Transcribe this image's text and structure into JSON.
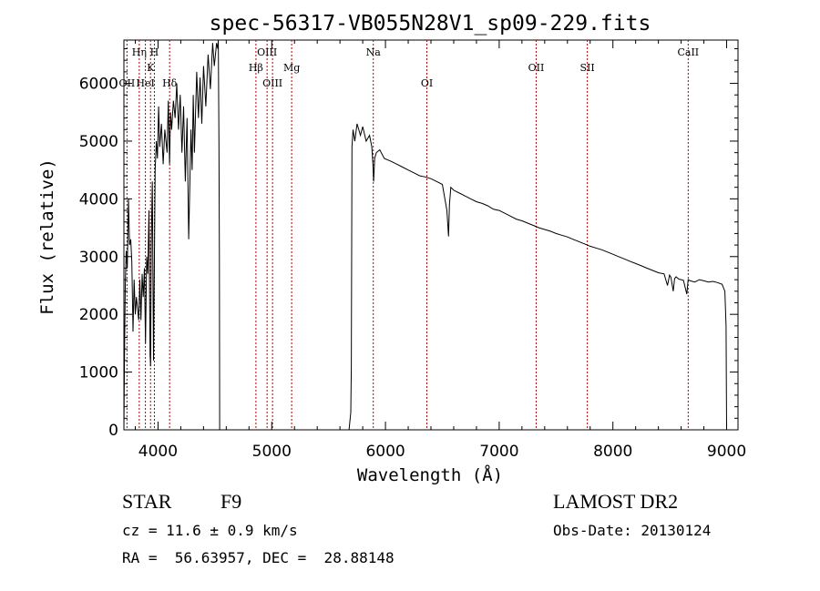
{
  "chart_data": {
    "type": "line",
    "title": "spec-56317-VB055N28V1_sp09-229.fits",
    "xlabel": "Wavelength (Å)",
    "ylabel": "Flux (relative)",
    "xlim": [
      3700,
      9100
    ],
    "ylim": [
      0,
      6750
    ],
    "xticks": [
      4000,
      5000,
      6000,
      7000,
      8000,
      9000
    ],
    "yticks": [
      0,
      1000,
      2000,
      3000,
      4000,
      5000,
      6000
    ],
    "x_tick_labels": [
      "4000",
      "5000",
      "6000",
      "7000",
      "8000",
      "9000"
    ],
    "y_tick_labels": [
      "0",
      "1000",
      "2000",
      "3000",
      "4000",
      "5000",
      "6000"
    ],
    "grid": false,
    "line_color": "#000000",
    "marker_line_color": "#b00000",
    "series": [
      {
        "x": [
          3700,
          3705,
          3712,
          3720,
          3730,
          3740,
          3750,
          3760,
          3770,
          3780,
          3790,
          3800,
          3810,
          3820,
          3830,
          3840,
          3850,
          3860,
          3870,
          3880,
          3890,
          3900,
          3910,
          3920,
          3930,
          3935,
          3940,
          3950,
          3960,
          3968,
          3975,
          3985,
          3995,
          4005,
          4015,
          4030,
          4045,
          4060,
          4080,
          4090,
          4101,
          4110,
          4120,
          4135,
          4150,
          4165,
          4180,
          4195,
          4210,
          4225,
          4240,
          4255,
          4270,
          4290,
          4300,
          4310,
          4320,
          4340,
          4355,
          4370,
          4385,
          4400,
          4420,
          4440,
          4460,
          4480,
          4495,
          4505,
          4515,
          4525,
          4530,
          4536,
          4540,
          4542,
          4550,
          4600,
          4700,
          4800,
          4900,
          5000,
          5100,
          5200,
          5300,
          5400,
          5500,
          5600,
          5680,
          5695,
          5700,
          5705,
          5715,
          5730,
          5750,
          5780,
          5800,
          5830,
          5860,
          5880,
          5890,
          5896,
          5905,
          5920,
          5950,
          5990,
          6050,
          6100,
          6150,
          6200,
          6250,
          6300,
          6350,
          6400,
          6450,
          6500,
          6540,
          6555,
          6563,
          6575,
          6600,
          6650,
          6700,
          6750,
          6800,
          6850,
          6900,
          6950,
          7000,
          7050,
          7100,
          7150,
          7200,
          7250,
          7300,
          7350,
          7400,
          7450,
          7500,
          7550,
          7600,
          7650,
          7700,
          7750,
          7800,
          7850,
          7900,
          7950,
          8000,
          8050,
          8100,
          8150,
          8200,
          8250,
          8300,
          8350,
          8400,
          8450,
          8480,
          8498,
          8510,
          8530,
          8542,
          8555,
          8580,
          8620,
          8650,
          8662,
          8680,
          8720,
          8760,
          8800,
          8840,
          8880,
          8920,
          8960,
          8985,
          8995,
          9000
        ],
        "y": [
          0,
          1200,
          2500,
          3100,
          2800,
          4000,
          3200,
          3300,
          2900,
          1700,
          2600,
          2000,
          2300,
          2100,
          1900,
          2600,
          1900,
          2700,
          2300,
          2800,
          1500,
          3000,
          2700,
          3800,
          1300,
          1100,
          3200,
          4300,
          1200,
          3000,
          4500,
          5000,
          4700,
          5600,
          4900,
          5300,
          4600,
          5200,
          4800,
          5700,
          4600,
          5500,
          5200,
          5700,
          5400,
          6000,
          5200,
          5800,
          4800,
          5600,
          4300,
          5400,
          3300,
          5200,
          4500,
          5800,
          4800,
          6200,
          5400,
          6100,
          5300,
          6300,
          5600,
          6500,
          5900,
          6700,
          6300,
          6500,
          6700,
          6600,
          6750,
          5000,
          3000,
          0,
          0,
          0,
          0,
          0,
          0,
          0,
          0,
          0,
          0,
          0,
          0,
          0,
          0,
          300,
          1100,
          4900,
          5200,
          5000,
          5300,
          5100,
          5250,
          5000,
          5100,
          4900,
          4600,
          4300,
          4700,
          4800,
          4850,
          4700,
          4650,
          4600,
          4550,
          4500,
          4450,
          4400,
          4380,
          4350,
          4300,
          4250,
          3800,
          3350,
          3900,
          4200,
          4150,
          4100,
          4050,
          4000,
          3950,
          3920,
          3880,
          3820,
          3800,
          3750,
          3700,
          3650,
          3620,
          3580,
          3540,
          3500,
          3470,
          3440,
          3400,
          3370,
          3340,
          3300,
          3260,
          3220,
          3180,
          3150,
          3120,
          3080,
          3040,
          3000,
          2960,
          2920,
          2880,
          2840,
          2800,
          2760,
          2720,
          2700,
          2500,
          2680,
          2640,
          2400,
          2620,
          2650,
          2610,
          2590,
          2350,
          2600,
          2580,
          2560,
          2600,
          2580,
          2560,
          2570,
          2550,
          2520,
          2400,
          1800,
          0
        ]
      }
    ],
    "line_markers": [
      {
        "label": "OII",
        "x": 3727,
        "row": 3
      },
      {
        "label": "Hη",
        "x": 3835,
        "row": 1
      },
      {
        "label": "HeI",
        "x": 3889,
        "row": 3
      },
      {
        "label": "K",
        "x": 3934,
        "row": 2
      },
      {
        "label": "H",
        "x": 3968,
        "row": 1
      },
      {
        "label": "Hδ",
        "x": 4102,
        "row": 3
      },
      {
        "label": "Hβ",
        "x": 4861,
        "row": 2
      },
      {
        "label": "OIII",
        "x": 4959,
        "row": 1
      },
      {
        "label": "OIII",
        "x": 5007,
        "row": 3
      },
      {
        "label": "Mg",
        "x": 5175,
        "row": 2
      },
      {
        "label": "Na",
        "x": 5893,
        "row": 1
      },
      {
        "label": "OI",
        "x": 6364,
        "row": 3
      },
      {
        "label": "OII",
        "x": 7325,
        "row": 2
      },
      {
        "label": "SII",
        "x": 7775,
        "row": 2
      },
      {
        "label": "CaII",
        "x": 8662,
        "row": 1
      }
    ]
  },
  "info": {
    "class_label": "STAR",
    "subclass": "F9",
    "survey": "LAMOST DR2",
    "cz": "cz = 11.6 ± 0.9 km/s",
    "obs_date": "Obs-Date: 20130124",
    "coords": "RA =  56.63957, DEC =  28.88148"
  }
}
